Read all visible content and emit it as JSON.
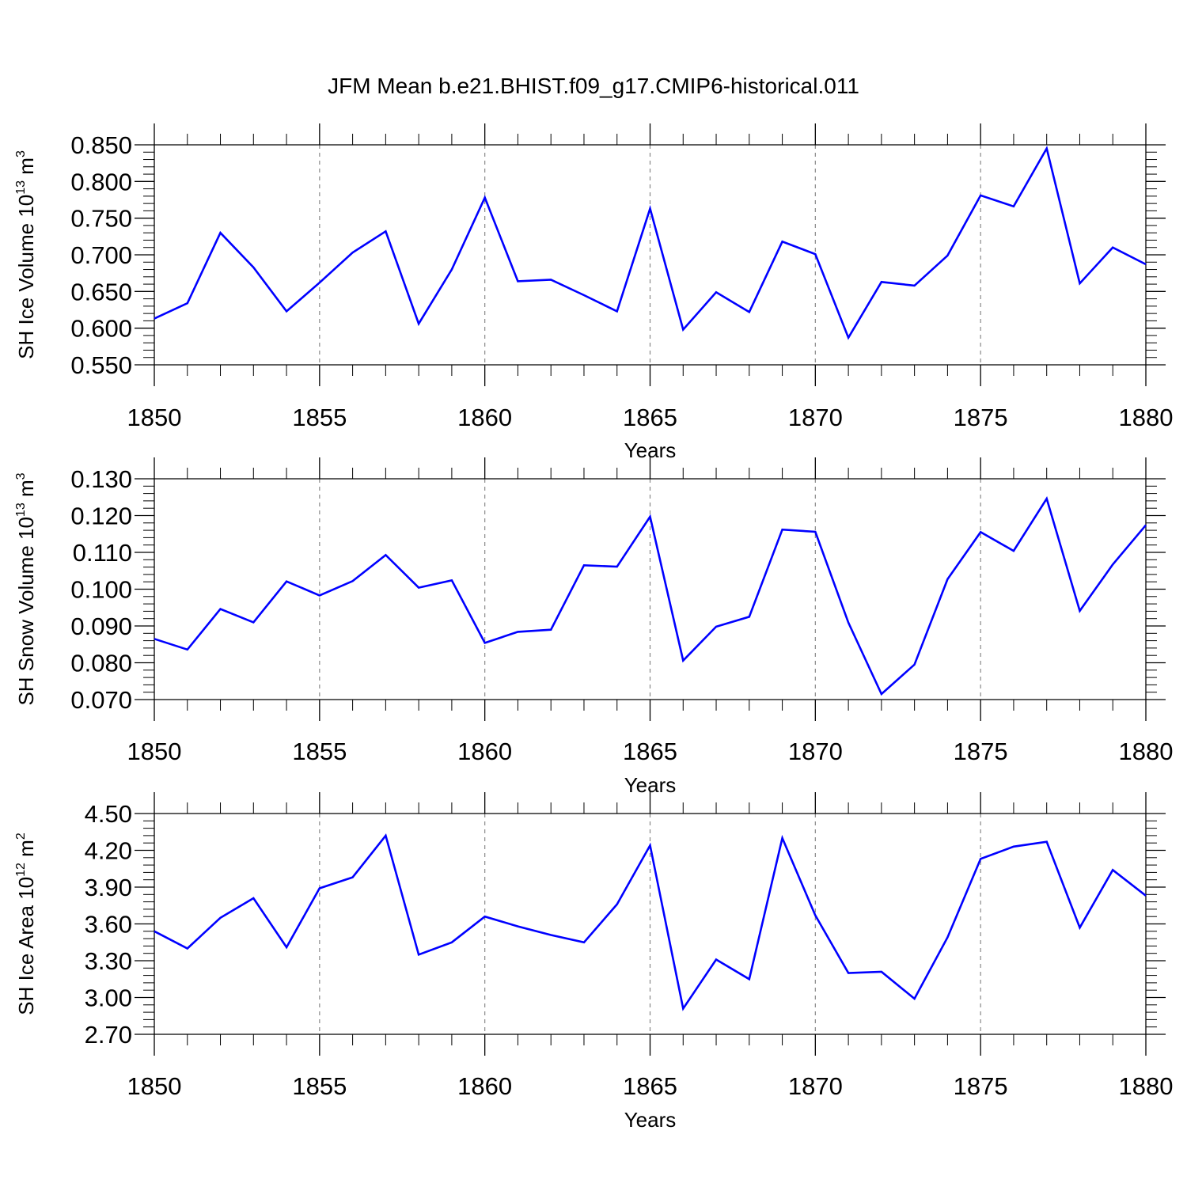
{
  "title": "JFM Mean b.e21.BHIST.f09_g17.CMIP6-historical.011",
  "line_color": "#0000ff",
  "chart_data": [
    {
      "type": "line",
      "ylabel": "SH Ice Volume 10",
      "ylabel_exp": "13",
      "ylabel_unit": " m",
      "ylabel_unit_exp": "3",
      "xlabel": "Years",
      "xlim": [
        1850,
        1880
      ],
      "ylim": [
        0.55,
        0.85
      ],
      "xticks": [
        "1850",
        "1855",
        "1860",
        "1865",
        "1870",
        "1875",
        "1880"
      ],
      "yticks": [
        "0.550",
        "0.600",
        "0.650",
        "0.700",
        "0.750",
        "0.800",
        "0.850"
      ],
      "grid": "vertical dashed at major x ticks",
      "series": [
        {
          "x": [
            1850,
            1851,
            1852,
            1853,
            1854,
            1855,
            1856,
            1857,
            1858,
            1859,
            1860,
            1861,
            1862,
            1863,
            1864,
            1865,
            1866,
            1867,
            1868,
            1869,
            1870,
            1871,
            1872,
            1873,
            1874,
            1875,
            1876,
            1877,
            1878,
            1879,
            1880
          ],
          "values": [
            0.613,
            0.634,
            0.73,
            0.683,
            0.623,
            0.662,
            0.703,
            0.732,
            0.606,
            0.68,
            0.778,
            0.664,
            0.666,
            0.645,
            0.623,
            0.763,
            0.598,
            0.649,
            0.622,
            0.718,
            0.701,
            0.587,
            0.663,
            0.658,
            0.699,
            0.781,
            0.766,
            0.845,
            0.661,
            0.71,
            0.687
          ]
        }
      ]
    },
    {
      "type": "line",
      "ylabel": "SH Snow Volume 10",
      "ylabel_exp": "13",
      "ylabel_unit": " m",
      "ylabel_unit_exp": "3",
      "xlabel": "Years",
      "xlim": [
        1850,
        1880
      ],
      "ylim": [
        0.07,
        0.13
      ],
      "xticks": [
        "1850",
        "1855",
        "1860",
        "1865",
        "1870",
        "1875",
        "1880"
      ],
      "yticks": [
        "0.070",
        "0.080",
        "0.090",
        "0.100",
        "0.110",
        "0.120",
        "0.130"
      ],
      "grid": "vertical dashed at major x ticks",
      "series": [
        {
          "x": [
            1850,
            1851,
            1852,
            1853,
            1854,
            1855,
            1856,
            1857,
            1858,
            1859,
            1860,
            1861,
            1862,
            1863,
            1864,
            1865,
            1866,
            1867,
            1868,
            1869,
            1870,
            1871,
            1872,
            1873,
            1874,
            1875,
            1876,
            1877,
            1878,
            1879,
            1880
          ],
          "values": [
            0.0865,
            0.0836,
            0.0946,
            0.091,
            0.1021,
            0.0983,
            0.1022,
            0.1093,
            0.1004,
            0.1024,
            0.0854,
            0.0884,
            0.089,
            0.1065,
            0.1061,
            0.1197,
            0.0806,
            0.0898,
            0.0925,
            0.1162,
            0.1156,
            0.0909,
            0.0715,
            0.0795,
            0.1027,
            0.1155,
            0.1104,
            0.1246,
            0.0941,
            0.1067,
            0.1174
          ]
        }
      ]
    },
    {
      "type": "line",
      "ylabel": "SH Ice Area 10",
      "ylabel_exp": "12",
      "ylabel_unit": " m",
      "ylabel_unit_exp": "2",
      "xlabel": "Years",
      "xlim": [
        1850,
        1880
      ],
      "ylim": [
        2.7,
        4.5
      ],
      "xticks": [
        "1850",
        "1855",
        "1860",
        "1865",
        "1870",
        "1875",
        "1880"
      ],
      "yticks": [
        "2.70",
        "3.00",
        "3.30",
        "3.60",
        "3.90",
        "4.20",
        "4.50"
      ],
      "grid": "vertical dashed at major x ticks",
      "series": [
        {
          "x": [
            1850,
            1851,
            1852,
            1853,
            1854,
            1855,
            1856,
            1857,
            1858,
            1859,
            1860,
            1861,
            1862,
            1863,
            1864,
            1865,
            1866,
            1867,
            1868,
            1869,
            1870,
            1871,
            1872,
            1873,
            1874,
            1875,
            1876,
            1877,
            1878,
            1879,
            1880
          ],
          "values": [
            3.54,
            3.4,
            3.65,
            3.81,
            3.41,
            3.89,
            3.98,
            4.32,
            3.35,
            3.45,
            3.66,
            3.58,
            3.51,
            3.45,
            3.76,
            4.24,
            2.91,
            3.31,
            3.15,
            4.3,
            3.67,
            3.2,
            3.21,
            2.99,
            3.49,
            4.13,
            4.23,
            4.27,
            3.57,
            4.04,
            3.83
          ]
        }
      ]
    }
  ]
}
